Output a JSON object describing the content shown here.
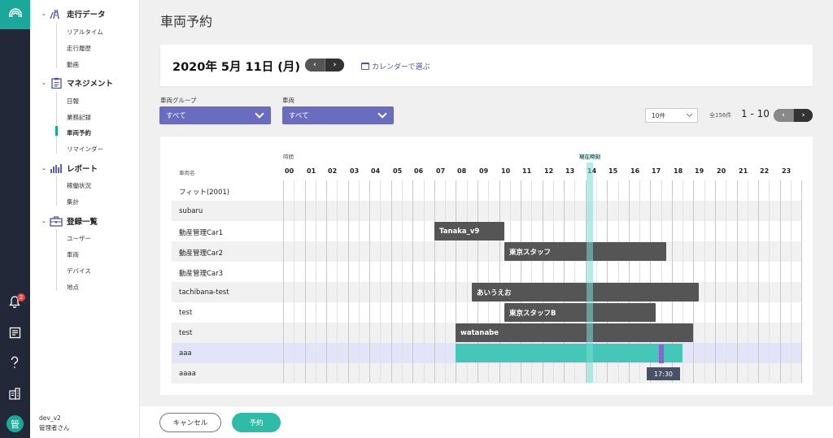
{
  "app": {
    "notification_count": "2",
    "avatar_initial": "管"
  },
  "sidebar": {
    "sections": [
      {
        "label": "走行データ",
        "icon": "road-icon",
        "items": [
          "リアルタイム",
          "走行履歴",
          "動画"
        ]
      },
      {
        "label": "マネジメント",
        "icon": "clipboard-icon",
        "items": [
          "日報",
          "業務記録",
          "車両予約",
          "リマインダー"
        ]
      },
      {
        "label": "レポート",
        "icon": "bar-chart-icon",
        "items": [
          "稼働状況",
          "集計"
        ]
      },
      {
        "label": "登録一覧",
        "icon": "briefcase-icon",
        "items": [
          "ユーザー",
          "車両",
          "デバイス",
          "地点"
        ]
      }
    ],
    "active_item": "車両予約",
    "user": {
      "tenant": "dev_v2",
      "role": "管理者さん"
    }
  },
  "page": {
    "title": "車両予約"
  },
  "date_bar": {
    "date": "2020年 5月 11日 (月)",
    "prev": "‹",
    "next": "›",
    "calendar_link": "カレンダーで選ぶ"
  },
  "filters": {
    "group_label": "車両グループ",
    "group_value": "すべて",
    "vehicle_label": "車両",
    "vehicle_value": "すべて"
  },
  "pagination": {
    "per_page": "10件",
    "total": "全156件",
    "range": "1 - 10",
    "prev": "‹",
    "next": "›"
  },
  "timeline": {
    "time_header": "時間",
    "name_header": "車両名",
    "now_label": "現在時刻",
    "now_hour": 14.2,
    "hours": [
      "00",
      "01",
      "02",
      "03",
      "04",
      "05",
      "06",
      "07",
      "08",
      "09",
      "10",
      "11",
      "12",
      "13",
      "14",
      "15",
      "16",
      "17",
      "18",
      "19",
      "20",
      "21",
      "22",
      "23"
    ],
    "rows": [
      {
        "name": "フィット(2001)"
      },
      {
        "name": "subaru"
      },
      {
        "name": "動産管理Car1"
      },
      {
        "name": "動産管理Car2"
      },
      {
        "name": "動産管理Car3"
      },
      {
        "name": "tachibana-test"
      },
      {
        "name": "test"
      },
      {
        "name": "test"
      },
      {
        "name": "aaa"
      },
      {
        "name": "aaaa"
      }
    ],
    "bookings": [
      {
        "row": 2,
        "label": "Tanaka_v9",
        "start": 7.0,
        "end": 10.25
      },
      {
        "row": 3,
        "label": "東京スタッフ",
        "start": 10.25,
        "end": 17.75
      },
      {
        "row": 5,
        "label": "あいうえお",
        "start": 8.75,
        "end": 19.25
      },
      {
        "row": 6,
        "label": "東京スタッフB",
        "start": 10.25,
        "end": 17.25
      },
      {
        "row": 7,
        "label": "watanabe",
        "start": 8.0,
        "end": 19.0
      },
      {
        "row": 8,
        "label": "",
        "start": 8.0,
        "end": 18.5,
        "selected": true
      }
    ],
    "selected_row": 8,
    "selection_marker_hour": 17.5,
    "tooltip": "17:30"
  },
  "footer": {
    "cancel_label": "キャンセル",
    "reserve_label": "予約"
  },
  "colors": {
    "accent": "#1aa89a",
    "brand_purple": "#6a6cc0",
    "booking_gray": "#555555",
    "booking_teal": "#44c6b8",
    "selected_row": "#e4e4f8"
  }
}
